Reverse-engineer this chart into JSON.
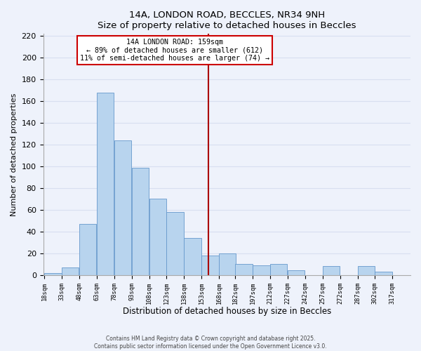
{
  "title": "14A, LONDON ROAD, BECCLES, NR34 9NH",
  "subtitle": "Size of property relative to detached houses in Beccles",
  "xlabel": "Distribution of detached houses by size in Beccles",
  "ylabel": "Number of detached properties",
  "bins": [
    18,
    33,
    48,
    63,
    78,
    93,
    108,
    123,
    138,
    153,
    168,
    182,
    197,
    212,
    227,
    242,
    257,
    272,
    287,
    302,
    317
  ],
  "counts": [
    2,
    7,
    47,
    168,
    124,
    99,
    70,
    58,
    34,
    18,
    20,
    10,
    9,
    10,
    4,
    0,
    8,
    0,
    8,
    3
  ],
  "bar_color": "#b8d4ee",
  "bar_edge_color": "#6699cc",
  "bg_color": "#eef2fb",
  "grid_color": "#d8dff0",
  "property_value": 159,
  "annotation_title": "14A LONDON ROAD: 159sqm",
  "annotation_line1": "← 89% of detached houses are smaller (612)",
  "annotation_line2": "11% of semi-detached houses are larger (74) →",
  "vline_color": "#aa0000",
  "annotation_box_color": "#ffffff",
  "annotation_box_edge": "#cc0000",
  "ylim": [
    0,
    222
  ],
  "yticks": [
    0,
    20,
    40,
    60,
    80,
    100,
    120,
    140,
    160,
    180,
    200,
    220
  ],
  "tick_labels": [
    "18sqm",
    "33sqm",
    "48sqm",
    "63sqm",
    "78sqm",
    "93sqm",
    "108sqm",
    "123sqm",
    "138sqm",
    "153sqm",
    "168sqm",
    "182sqm",
    "197sqm",
    "212sqm",
    "227sqm",
    "242sqm",
    "257sqm",
    "272sqm",
    "287sqm",
    "302sqm",
    "317sqm"
  ],
  "footer_line1": "Contains HM Land Registry data © Crown copyright and database right 2025.",
  "footer_line2": "Contains public sector information licensed under the Open Government Licence v3.0."
}
